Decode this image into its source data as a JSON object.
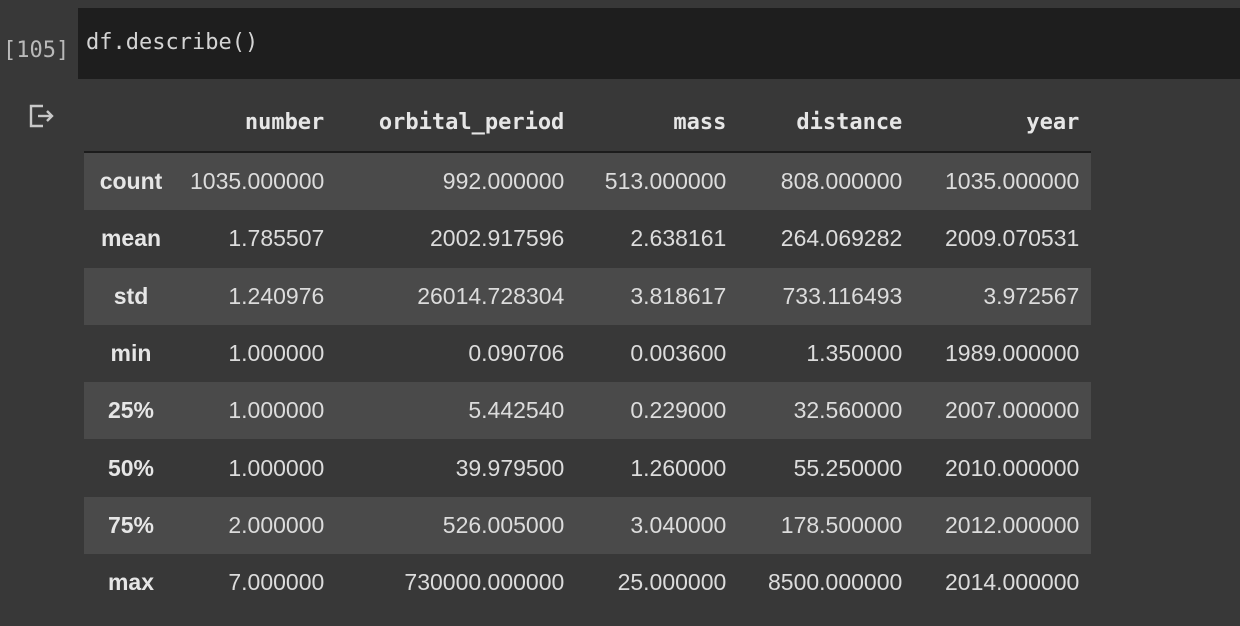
{
  "cell": {
    "execution_count": "[105]",
    "code": "df.describe()"
  },
  "output": {
    "icon": "output-redirect-icon",
    "columns": [
      "number",
      "orbital_period",
      "mass",
      "distance",
      "year"
    ],
    "rows": [
      {
        "label": "count",
        "values": [
          "1035.000000",
          "992.000000",
          "513.000000",
          "808.000000",
          "1035.000000"
        ]
      },
      {
        "label": "mean",
        "values": [
          "1.785507",
          "2002.917596",
          "2.638161",
          "264.069282",
          "2009.070531"
        ]
      },
      {
        "label": "std",
        "values": [
          "1.240976",
          "26014.728304",
          "3.818617",
          "733.116493",
          "3.972567"
        ]
      },
      {
        "label": "min",
        "values": [
          "1.000000",
          "0.090706",
          "0.003600",
          "1.350000",
          "1989.000000"
        ]
      },
      {
        "label": "25%",
        "values": [
          "1.000000",
          "5.442540",
          "0.229000",
          "32.560000",
          "2007.000000"
        ]
      },
      {
        "label": "50%",
        "values": [
          "1.000000",
          "39.979500",
          "1.260000",
          "55.250000",
          "2010.000000"
        ]
      },
      {
        "label": "75%",
        "values": [
          "2.000000",
          "526.005000",
          "3.040000",
          "178.500000",
          "2012.000000"
        ]
      },
      {
        "label": "max",
        "values": [
          "7.000000",
          "730000.000000",
          "25.000000",
          "8500.000000",
          "2014.000000"
        ]
      }
    ]
  }
}
